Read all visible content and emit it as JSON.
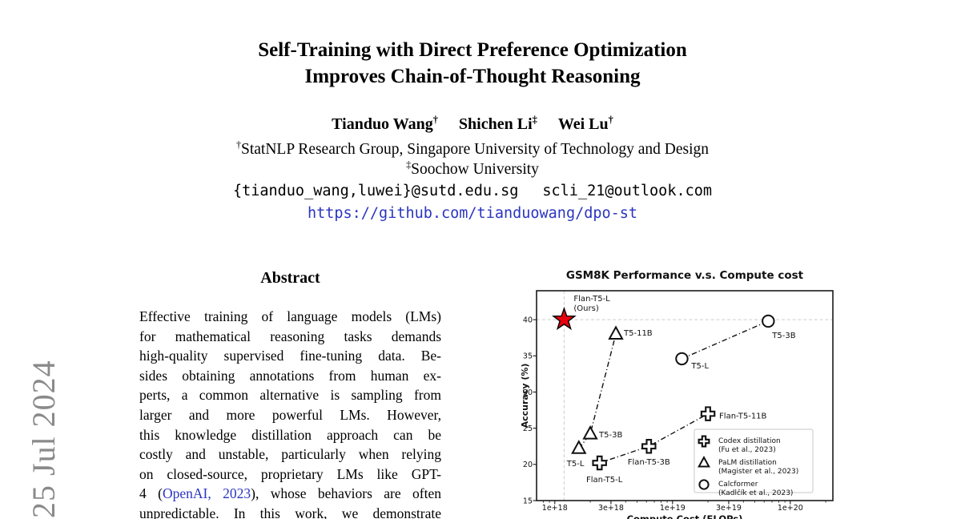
{
  "watermark": {
    "text": "25 Jul 2024"
  },
  "header": {
    "title_line1": "Self-Training with Direct Preference Optimization",
    "title_line2": "Improves Chain-of-Thought Reasoning",
    "authors": [
      {
        "name": "Tianduo Wang",
        "mark": "†"
      },
      {
        "name": "Shichen Li",
        "mark": "‡"
      },
      {
        "name": "Wei Lu",
        "mark": "†"
      }
    ],
    "affiliations": [
      {
        "mark": "†",
        "text": "StatNLP Research Group, Singapore University of Technology and Design"
      },
      {
        "mark": "‡",
        "text": "Soochow University"
      }
    ],
    "emails": [
      "{tianduo_wang,luwei}@sutd.edu.sg",
      "scli_21@outlook.com"
    ],
    "url": "https://github.com/tianduowang/dpo-st",
    "link_color": "#2b35c0"
  },
  "abstract": {
    "heading": "Abstract",
    "lines": [
      "Effective training of language models (LMs)",
      "for mathematical reasoning tasks demands",
      "high-quality supervised fine-tuning data. Be-",
      "sides obtaining annotations from human ex-",
      "perts, a common alternative is sampling from",
      "larger and more powerful LMs. However,",
      "this knowledge distillation approach can be",
      "costly and unstable, particularly when relying",
      "on closed-source, proprietary LMs like GPT-",
      {
        "a": "4 (",
        "cite": "OpenAI, 2023",
        "b": "), whose behaviors are often"
      },
      "unpredictable. In this work, we demonstrate"
    ]
  },
  "chart_data": {
    "type": "scatter",
    "title": "GSM8K Performance v.s. Compute cost",
    "xlabel": "Compute Cost (FLOPs)",
    "ylabel": "Accuracy (%)",
    "x_scale": "log",
    "xlim": [
      7e+17,
      2.3e+20
    ],
    "ylim": [
      15,
      44
    ],
    "x_ticks": [
      {
        "v": 1e+18,
        "label": "1e+18"
      },
      {
        "v": 3e+18,
        "label": "3e+18"
      },
      {
        "v": 1e+19,
        "label": "1e+19"
      },
      {
        "v": 3e+19,
        "label": "3e+19"
      },
      {
        "v": 1e+20,
        "label": "1e+20"
      }
    ],
    "y_ticks": [
      15,
      20,
      25,
      30,
      35,
      40
    ],
    "gridlines": {
      "h": [
        40
      ],
      "v": [
        1.2e+18
      ],
      "style": "dashed",
      "color": "#cccccc"
    },
    "legend": {
      "position": "lower right"
    },
    "line_style": "dashdot",
    "series": [
      {
        "name": "Ours",
        "marker": "star",
        "marker_color": "#e8000d",
        "points": [
          {
            "x": 1.2e+18,
            "y": 40.0,
            "label_lines": [
              "Flan-T5-L",
              "(Ours)"
            ],
            "anchor": "start",
            "dx": 12,
            "dy": -23
          }
        ]
      },
      {
        "name": "Codex distillation",
        "legend_lines": [
          "Codex distillation",
          "(Fu et al., 2023)"
        ],
        "marker": "cross",
        "points": [
          {
            "x": 2.4e+18,
            "y": 20.2,
            "label": "Flan-T5-L",
            "anchor": "middle",
            "dx": 6,
            "dy": 24
          },
          {
            "x": 6.3e+18,
            "y": 22.5,
            "label": "Flan-T5-3B",
            "anchor": "middle",
            "dx": 0,
            "dy": 23
          },
          {
            "x": 2e+19,
            "y": 27.0,
            "label": "Flan-T5-11B",
            "anchor": "start",
            "dx": 14,
            "dy": 6
          }
        ]
      },
      {
        "name": "PaLM distillation",
        "legend_lines": [
          "PaLM distillation",
          "(Magister et al., 2023)"
        ],
        "marker": "triangle",
        "points": [
          {
            "x": 1.6e+18,
            "y": 22.2,
            "label": "T5-L",
            "anchor": "start",
            "dx": -15,
            "dy": 22
          },
          {
            "x": 2e+18,
            "y": 24.2,
            "label": "T5-3B",
            "anchor": "start",
            "dx": 11,
            "dy": 4
          },
          {
            "x": 3.3e+18,
            "y": 38.0,
            "label": "T5-11B",
            "anchor": "start",
            "dx": 10,
            "dy": 2
          }
        ]
      },
      {
        "name": "Calcformer",
        "legend_lines": [
          "Calcformer",
          "(Kadlčík et al., 2023)"
        ],
        "marker": "circle",
        "points": [
          {
            "x": 1.2e+19,
            "y": 34.6,
            "label": "T5-L",
            "anchor": "start",
            "dx": 12,
            "dy": 12
          },
          {
            "x": 6.5e+19,
            "y": 39.8,
            "label": "T5-3B",
            "anchor": "start",
            "dx": 5,
            "dy": 21
          }
        ]
      }
    ]
  }
}
